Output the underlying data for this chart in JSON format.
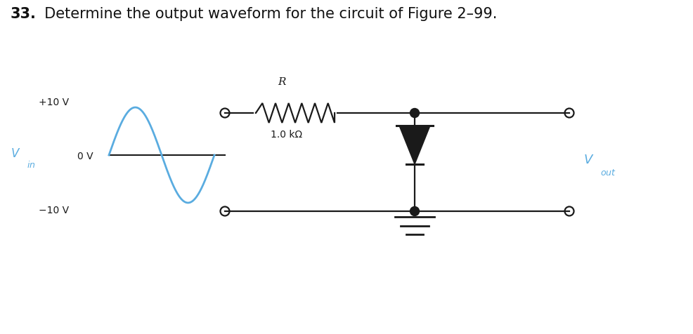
{
  "title_bold": "33.",
  "title_rest": "  Determine the output waveform for the circuit of Figure 2–99.",
  "title_fontsize": 15,
  "background_color": "#ffffff",
  "waveform_color": "#5aace0",
  "circuit_color": "#1a1a1a",
  "voltage_labels": [
    "+10 V",
    "0 V",
    "−10 V"
  ],
  "resistor_label": "R",
  "resistor_value": "1.0 kΩ",
  "fig_w": 9.87,
  "fig_h": 4.77,
  "dpi": 100
}
